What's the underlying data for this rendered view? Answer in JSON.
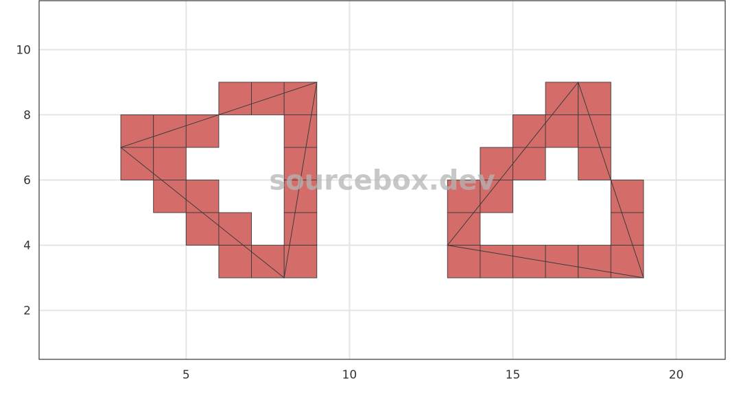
{
  "chart_data": {
    "type": "heatmap",
    "title": "",
    "xlabel": "",
    "ylabel": "",
    "xlim": [
      0.5,
      21.5
    ],
    "ylim": [
      0.5,
      11.5
    ],
    "x_ticks": [
      5,
      10,
      15,
      20
    ],
    "y_ticks": [
      2,
      4,
      6,
      8,
      10
    ],
    "grid": true,
    "fill_color": "#D46D6A",
    "edge_color": "#3A3A3A",
    "cell_size": 1,
    "shapes": [
      {
        "cells": [
          [
            6,
            9
          ],
          [
            7,
            9
          ],
          [
            8,
            9
          ],
          [
            3,
            8
          ],
          [
            4,
            8
          ],
          [
            5,
            8
          ],
          [
            8,
            8
          ],
          [
            3,
            7
          ],
          [
            4,
            7
          ],
          [
            8,
            7
          ],
          [
            4,
            6
          ],
          [
            5,
            6
          ],
          [
            8,
            6
          ],
          [
            5,
            5
          ],
          [
            6,
            5
          ],
          [
            8,
            5
          ],
          [
            6,
            4
          ],
          [
            7,
            4
          ],
          [
            8,
            4
          ]
        ],
        "triangle": [
          [
            3,
            7
          ],
          [
            9,
            9
          ],
          [
            8,
            3
          ]
        ]
      },
      {
        "cells": [
          [
            16,
            9
          ],
          [
            17,
            9
          ],
          [
            15,
            8
          ],
          [
            16,
            8
          ],
          [
            17,
            8
          ],
          [
            14,
            7
          ],
          [
            15,
            7
          ],
          [
            17,
            7
          ],
          [
            13,
            6
          ],
          [
            14,
            6
          ],
          [
            18,
            6
          ],
          [
            13,
            5
          ],
          [
            18,
            5
          ],
          [
            13,
            4
          ],
          [
            14,
            4
          ],
          [
            15,
            4
          ],
          [
            16,
            4
          ],
          [
            17,
            4
          ],
          [
            18,
            4
          ]
        ],
        "triangle": [
          [
            13,
            4
          ],
          [
            17,
            9
          ],
          [
            19,
            3
          ]
        ]
      }
    ]
  },
  "watermark": "sourcebox.dev"
}
